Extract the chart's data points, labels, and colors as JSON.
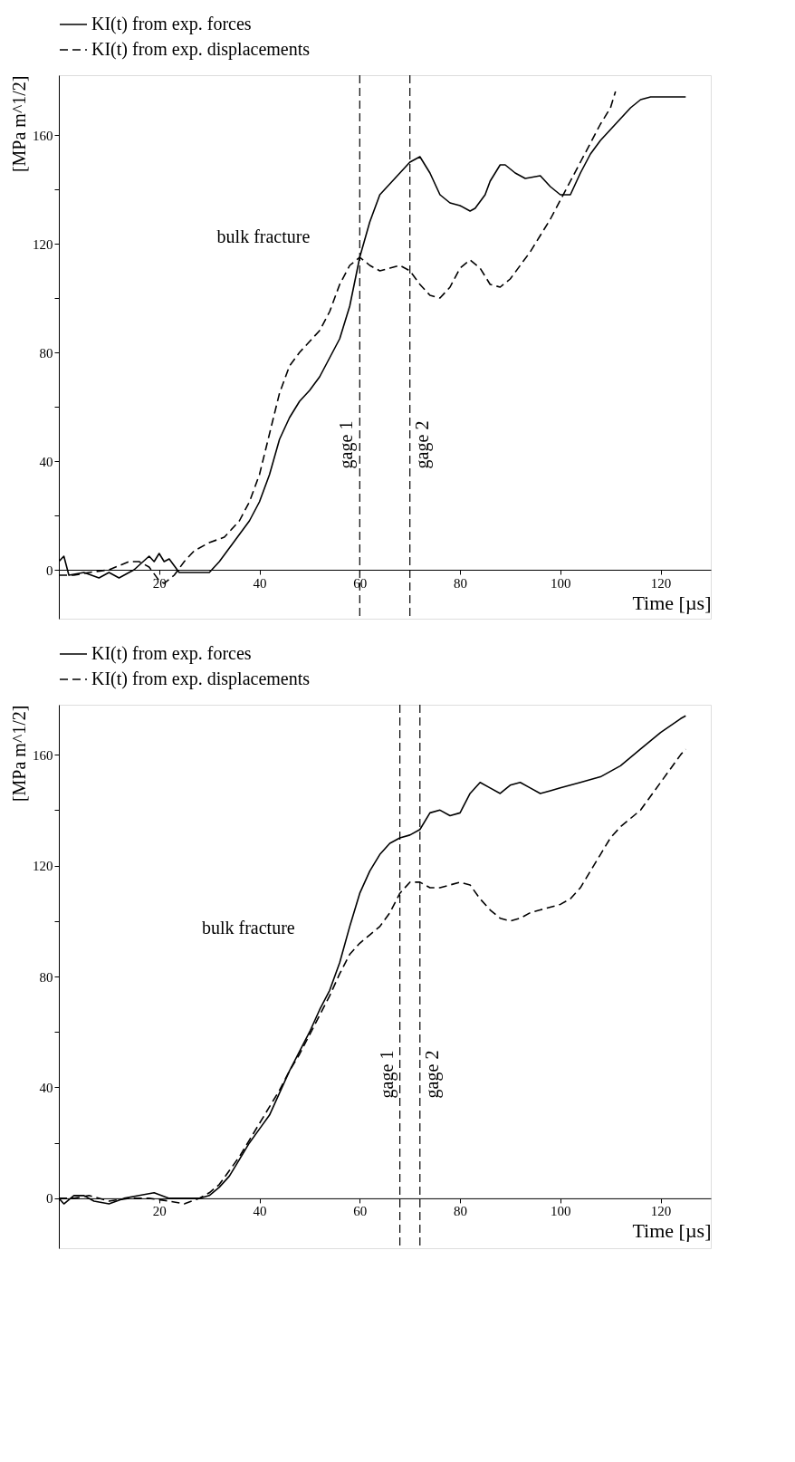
{
  "chart_data": [
    {
      "type": "line",
      "xlabel": "Time [µs]",
      "ylabel": "[MPa m^1/2]",
      "xlim": [
        0,
        130
      ],
      "ylim": [
        -18,
        182
      ],
      "xticks": [
        20,
        40,
        60,
        80,
        100,
        120
      ],
      "yticks": [
        0,
        {
          "value": 20,
          "label": null
        },
        40,
        {
          "value": 60,
          "label": null
        },
        80,
        {
          "value": 100,
          "label": null
        },
        120,
        {
          "value": 140,
          "label": null
        },
        160
      ],
      "grid": false,
      "legend": "top",
      "series": [
        {
          "name": "KI(t) from exp. forces",
          "color": "#000000",
          "line_style": "solid",
          "x": [
            0,
            1,
            2,
            5,
            8,
            10,
            12,
            15,
            18,
            19,
            20,
            21,
            22,
            24,
            26,
            30,
            32,
            34,
            36,
            38,
            40,
            42,
            44,
            46,
            48,
            50,
            52,
            54,
            56,
            58,
            60,
            62,
            64,
            66,
            68,
            70,
            72,
            74,
            76,
            78,
            80,
            82,
            83,
            85,
            86,
            88,
            89,
            91,
            93,
            96,
            98,
            100,
            102,
            104,
            106,
            108,
            110,
            112,
            114,
            116,
            118,
            120,
            122,
            125
          ],
          "values": [
            3,
            5,
            -2,
            -1,
            -3,
            -1,
            -3,
            0,
            5,
            3,
            6,
            3,
            4,
            -1,
            -1,
            -1,
            3,
            8,
            13,
            18,
            25,
            35,
            48,
            56,
            62,
            66,
            71,
            78,
            85,
            97,
            115,
            128,
            138,
            142,
            146,
            150,
            152,
            146,
            138,
            135,
            134,
            132,
            133,
            138,
            143,
            149,
            149,
            146,
            144,
            145,
            141,
            138,
            138,
            146,
            153,
            158,
            162,
            166,
            170,
            173,
            174,
            174,
            174,
            174
          ]
        },
        {
          "name": "KI(t) from exp. displacements",
          "color": "#000000",
          "line_style": "dashed",
          "x": [
            0,
            3,
            6,
            10,
            14,
            16,
            18,
            20,
            21,
            23,
            25,
            27,
            30,
            33,
            36,
            38,
            40,
            42,
            44,
            46,
            48,
            50,
            52,
            54,
            56,
            58,
            60,
            62,
            64,
            66,
            68,
            70,
            72,
            74,
            76,
            78,
            80,
            82,
            84,
            86,
            88,
            90,
            92,
            94,
            96,
            98,
            100,
            102,
            104,
            106,
            108,
            110,
            111
          ],
          "values": [
            -2,
            -2,
            -1,
            0,
            3,
            3,
            1,
            -4,
            -5,
            -2,
            3,
            7,
            10,
            12,
            18,
            25,
            35,
            50,
            65,
            75,
            80,
            84,
            88,
            95,
            105,
            112,
            115,
            112,
            110,
            111,
            112,
            110,
            105,
            101,
            100,
            104,
            111,
            114,
            111,
            105,
            104,
            107,
            112,
            117,
            123,
            129,
            136,
            143,
            150,
            157,
            164,
            170,
            176
          ]
        }
      ],
      "ref_lines": [
        {
          "axis": "x",
          "value": 60,
          "label": "gage 1",
          "line_style": "dashed"
        },
        {
          "axis": "x",
          "value": 70,
          "label": "gage 2",
          "line_style": "dashed"
        }
      ],
      "annotations": [
        {
          "text": "bulk fracture",
          "x": 60,
          "y": 115
        }
      ]
    },
    {
      "type": "line",
      "xlabel": "Time [µs]",
      "ylabel": "[MPa m^1/2]",
      "xlim": [
        0,
        130
      ],
      "ylim": [
        -18,
        178
      ],
      "xticks": [
        20,
        40,
        60,
        80,
        100,
        120
      ],
      "yticks": [
        0,
        {
          "value": 20,
          "label": null
        },
        40,
        {
          "value": 60,
          "label": null
        },
        80,
        {
          "value": 100,
          "label": null
        },
        120,
        {
          "value": 140,
          "label": null
        },
        160
      ],
      "grid": false,
      "legend": "top",
      "series": [
        {
          "name": "KI(t) from exp. forces",
          "color": "#000000",
          "line_style": "solid",
          "x": [
            0,
            1,
            3,
            5,
            7,
            10,
            13,
            16,
            19,
            22,
            25,
            28,
            30,
            32,
            34,
            36,
            38,
            40,
            42,
            44,
            46,
            48,
            50,
            52,
            54,
            56,
            58,
            60,
            62,
            64,
            66,
            68,
            70,
            72,
            74,
            76,
            78,
            80,
            82,
            84,
            86,
            88,
            90,
            92,
            94,
            96,
            98,
            100,
            104,
            108,
            112,
            116,
            120,
            124,
            125
          ],
          "values": [
            0,
            -2,
            1,
            1,
            -1,
            -2,
            0,
            1,
            2,
            0,
            0,
            0,
            1,
            4,
            8,
            14,
            20,
            25,
            30,
            38,
            46,
            53,
            60,
            68,
            75,
            85,
            98,
            110,
            118,
            124,
            128,
            130,
            131,
            133,
            139,
            140,
            138,
            139,
            146,
            150,
            148,
            146,
            149,
            150,
            148,
            146,
            147,
            148,
            150,
            152,
            156,
            162,
            168,
            173,
            174
          ]
        },
        {
          "name": "KI(t) from exp. displacements",
          "color": "#000000",
          "line_style": "dashed",
          "x": [
            0,
            3,
            6,
            10,
            14,
            18,
            22,
            25,
            28,
            30,
            32,
            34,
            36,
            38,
            40,
            42,
            44,
            46,
            48,
            50,
            52,
            54,
            56,
            58,
            60,
            62,
            64,
            66,
            68,
            70,
            72,
            74,
            76,
            78,
            80,
            82,
            84,
            86,
            88,
            90,
            92,
            94,
            96,
            100,
            102,
            104,
            106,
            108,
            110,
            112,
            114,
            116,
            118,
            120,
            122,
            124,
            125
          ],
          "values": [
            0,
            0,
            1,
            -1,
            0,
            0,
            -1,
            -2,
            0,
            2,
            5,
            10,
            15,
            21,
            27,
            33,
            39,
            46,
            52,
            59,
            66,
            73,
            81,
            88,
            92,
            95,
            98,
            103,
            110,
            114,
            114,
            112,
            112,
            113,
            114,
            113,
            108,
            104,
            101,
            100,
            101,
            103,
            104,
            106,
            108,
            112,
            118,
            124,
            130,
            134,
            137,
            140,
            145,
            150,
            155,
            160,
            162
          ]
        }
      ],
      "ref_lines": [
        {
          "axis": "x",
          "value": 68,
          "label": "gage 1",
          "line_style": "dashed"
        },
        {
          "axis": "x",
          "value": 72,
          "label": "gage 2",
          "line_style": "dashed"
        }
      ],
      "annotations": [
        {
          "text": "bulk fracture",
          "x": 57,
          "y": 90
        }
      ]
    }
  ]
}
